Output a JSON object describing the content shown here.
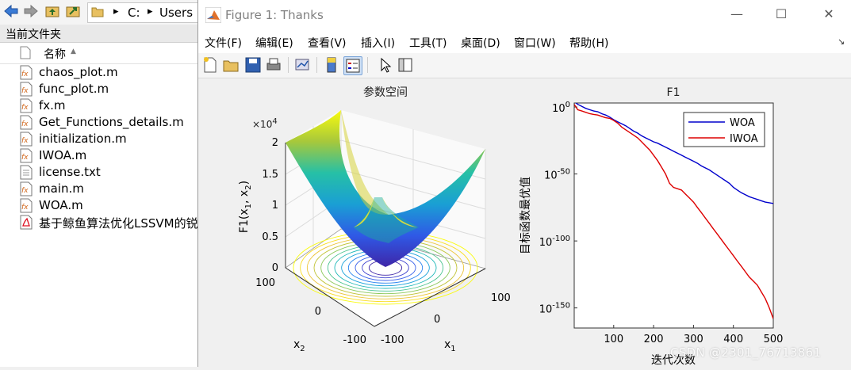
{
  "browser": {
    "path_drive": "C:",
    "path_folder": "Users",
    "current_folder_label": "当前文件夹",
    "column_name": "名称",
    "files": [
      {
        "name": "chaos_plot.m",
        "type": "function"
      },
      {
        "name": "func_plot.m",
        "type": "function"
      },
      {
        "name": "fx.m",
        "type": "function"
      },
      {
        "name": "Get_Functions_details.m",
        "type": "function"
      },
      {
        "name": "initialization.m",
        "type": "function"
      },
      {
        "name": "IWOA.m",
        "type": "function"
      },
      {
        "name": "license.txt",
        "type": "text"
      },
      {
        "name": "main.m",
        "type": "function"
      },
      {
        "name": "WOA.m",
        "type": "function"
      },
      {
        "name": "基于鲸鱼算法优化LSSVM的锐",
        "type": "pdf"
      }
    ]
  },
  "window": {
    "title": "Figure 1: Thanks",
    "minimize": "—",
    "maximize": "☐",
    "close": "✕"
  },
  "menu": [
    "文件(F)",
    "编辑(E)",
    "查看(V)",
    "插入(I)",
    "工具(T)",
    "桌面(D)",
    "窗口(W)",
    "帮助(H)"
  ],
  "chart_data": [
    {
      "type": "surface",
      "title": "参数空间",
      "xlabel": "x1",
      "ylabel": "x2",
      "zlabel": "F1(x1, x2)",
      "function": "x1^2 + x2^2",
      "xlim": [
        -100,
        100
      ],
      "ylim": [
        -100,
        100
      ],
      "zlim": [
        0,
        20000
      ],
      "z_multiplier_label": "×10",
      "z_multiplier_exponent": "4",
      "x_ticks": [
        "-100",
        "0",
        "100"
      ],
      "y_ticks": [
        "-100",
        "0",
        "100"
      ],
      "z_ticks": [
        "0",
        "0.5",
        "1",
        "1.5",
        "2"
      ],
      "contour_below": true,
      "colormap": "parula"
    },
    {
      "type": "line",
      "title": "F1",
      "xlabel": "迭代次数",
      "ylabel": "目标函数最优值",
      "yscale": "log",
      "xlim": [
        1,
        500
      ],
      "ylim": [
        1e-165,
        1000.0
      ],
      "x_ticks": [
        "100",
        "200",
        "300",
        "400",
        "500"
      ],
      "y_ticks": [
        {
          "base": "10",
          "exp": "0",
          "value_exp": 0
        },
        {
          "base": "10",
          "exp": "-50",
          "value_exp": -50
        },
        {
          "base": "10",
          "exp": "-100",
          "value_exp": -100
        },
        {
          "base": "10",
          "exp": "-150",
          "value_exp": -150
        }
      ],
      "legend": "top-right",
      "series": [
        {
          "name": "WOA",
          "color": "#0000cc",
          "x": [
            1,
            10,
            20,
            30,
            40,
            50,
            60,
            70,
            80,
            90,
            100,
            110,
            120,
            130,
            140,
            150,
            160,
            170,
            180,
            190,
            200,
            210,
            220,
            230,
            240,
            250,
            260,
            270,
            280,
            290,
            300,
            310,
            320,
            330,
            340,
            350,
            360,
            370,
            380,
            390,
            400,
            410,
            420,
            430,
            440,
            450,
            460,
            470,
            480,
            490,
            500
          ],
          "log10_y": [
            4,
            2,
            0.5,
            -1,
            -2,
            -3,
            -3.5,
            -5,
            -6,
            -7.5,
            -9.5,
            -11,
            -12.5,
            -14,
            -16,
            -18,
            -19.5,
            -21.5,
            -23,
            -24.5,
            -26,
            -27,
            -28.5,
            -30,
            -31.5,
            -33,
            -34.5,
            -36,
            -37.5,
            -39,
            -40.5,
            -42,
            -44,
            -45.5,
            -47,
            -49,
            -51,
            -53,
            -55,
            -57,
            -60,
            -62,
            -64,
            -65.5,
            -67,
            -68,
            -69,
            -70,
            -71,
            -71.5,
            -72
          ]
        },
        {
          "name": "IWOA",
          "color": "#dd0000",
          "x": [
            1,
            10,
            20,
            30,
            40,
            50,
            60,
            70,
            80,
            90,
            100,
            110,
            120,
            130,
            140,
            150,
            160,
            170,
            180,
            190,
            200,
            210,
            220,
            230,
            240,
            250,
            260,
            270,
            280,
            290,
            300,
            310,
            320,
            330,
            340,
            350,
            360,
            370,
            380,
            390,
            400,
            410,
            420,
            430,
            440,
            450,
            460,
            470,
            480,
            490,
            500
          ],
          "log10_y": [
            2,
            -2,
            -3,
            -4,
            -5,
            -5.5,
            -6,
            -7,
            -8,
            -8.5,
            -10,
            -12,
            -15,
            -17,
            -19,
            -21,
            -23,
            -26,
            -29,
            -32,
            -36,
            -40,
            -45,
            -50,
            -57,
            -60,
            -61,
            -62,
            -65,
            -68,
            -71,
            -75,
            -79,
            -83,
            -87,
            -91,
            -95,
            -99,
            -103,
            -107,
            -111,
            -115,
            -119,
            -123,
            -127,
            -130,
            -133,
            -138,
            -143,
            -150,
            -158
          ]
        }
      ]
    }
  ],
  "watermark": "CSDN @2301_76713861"
}
